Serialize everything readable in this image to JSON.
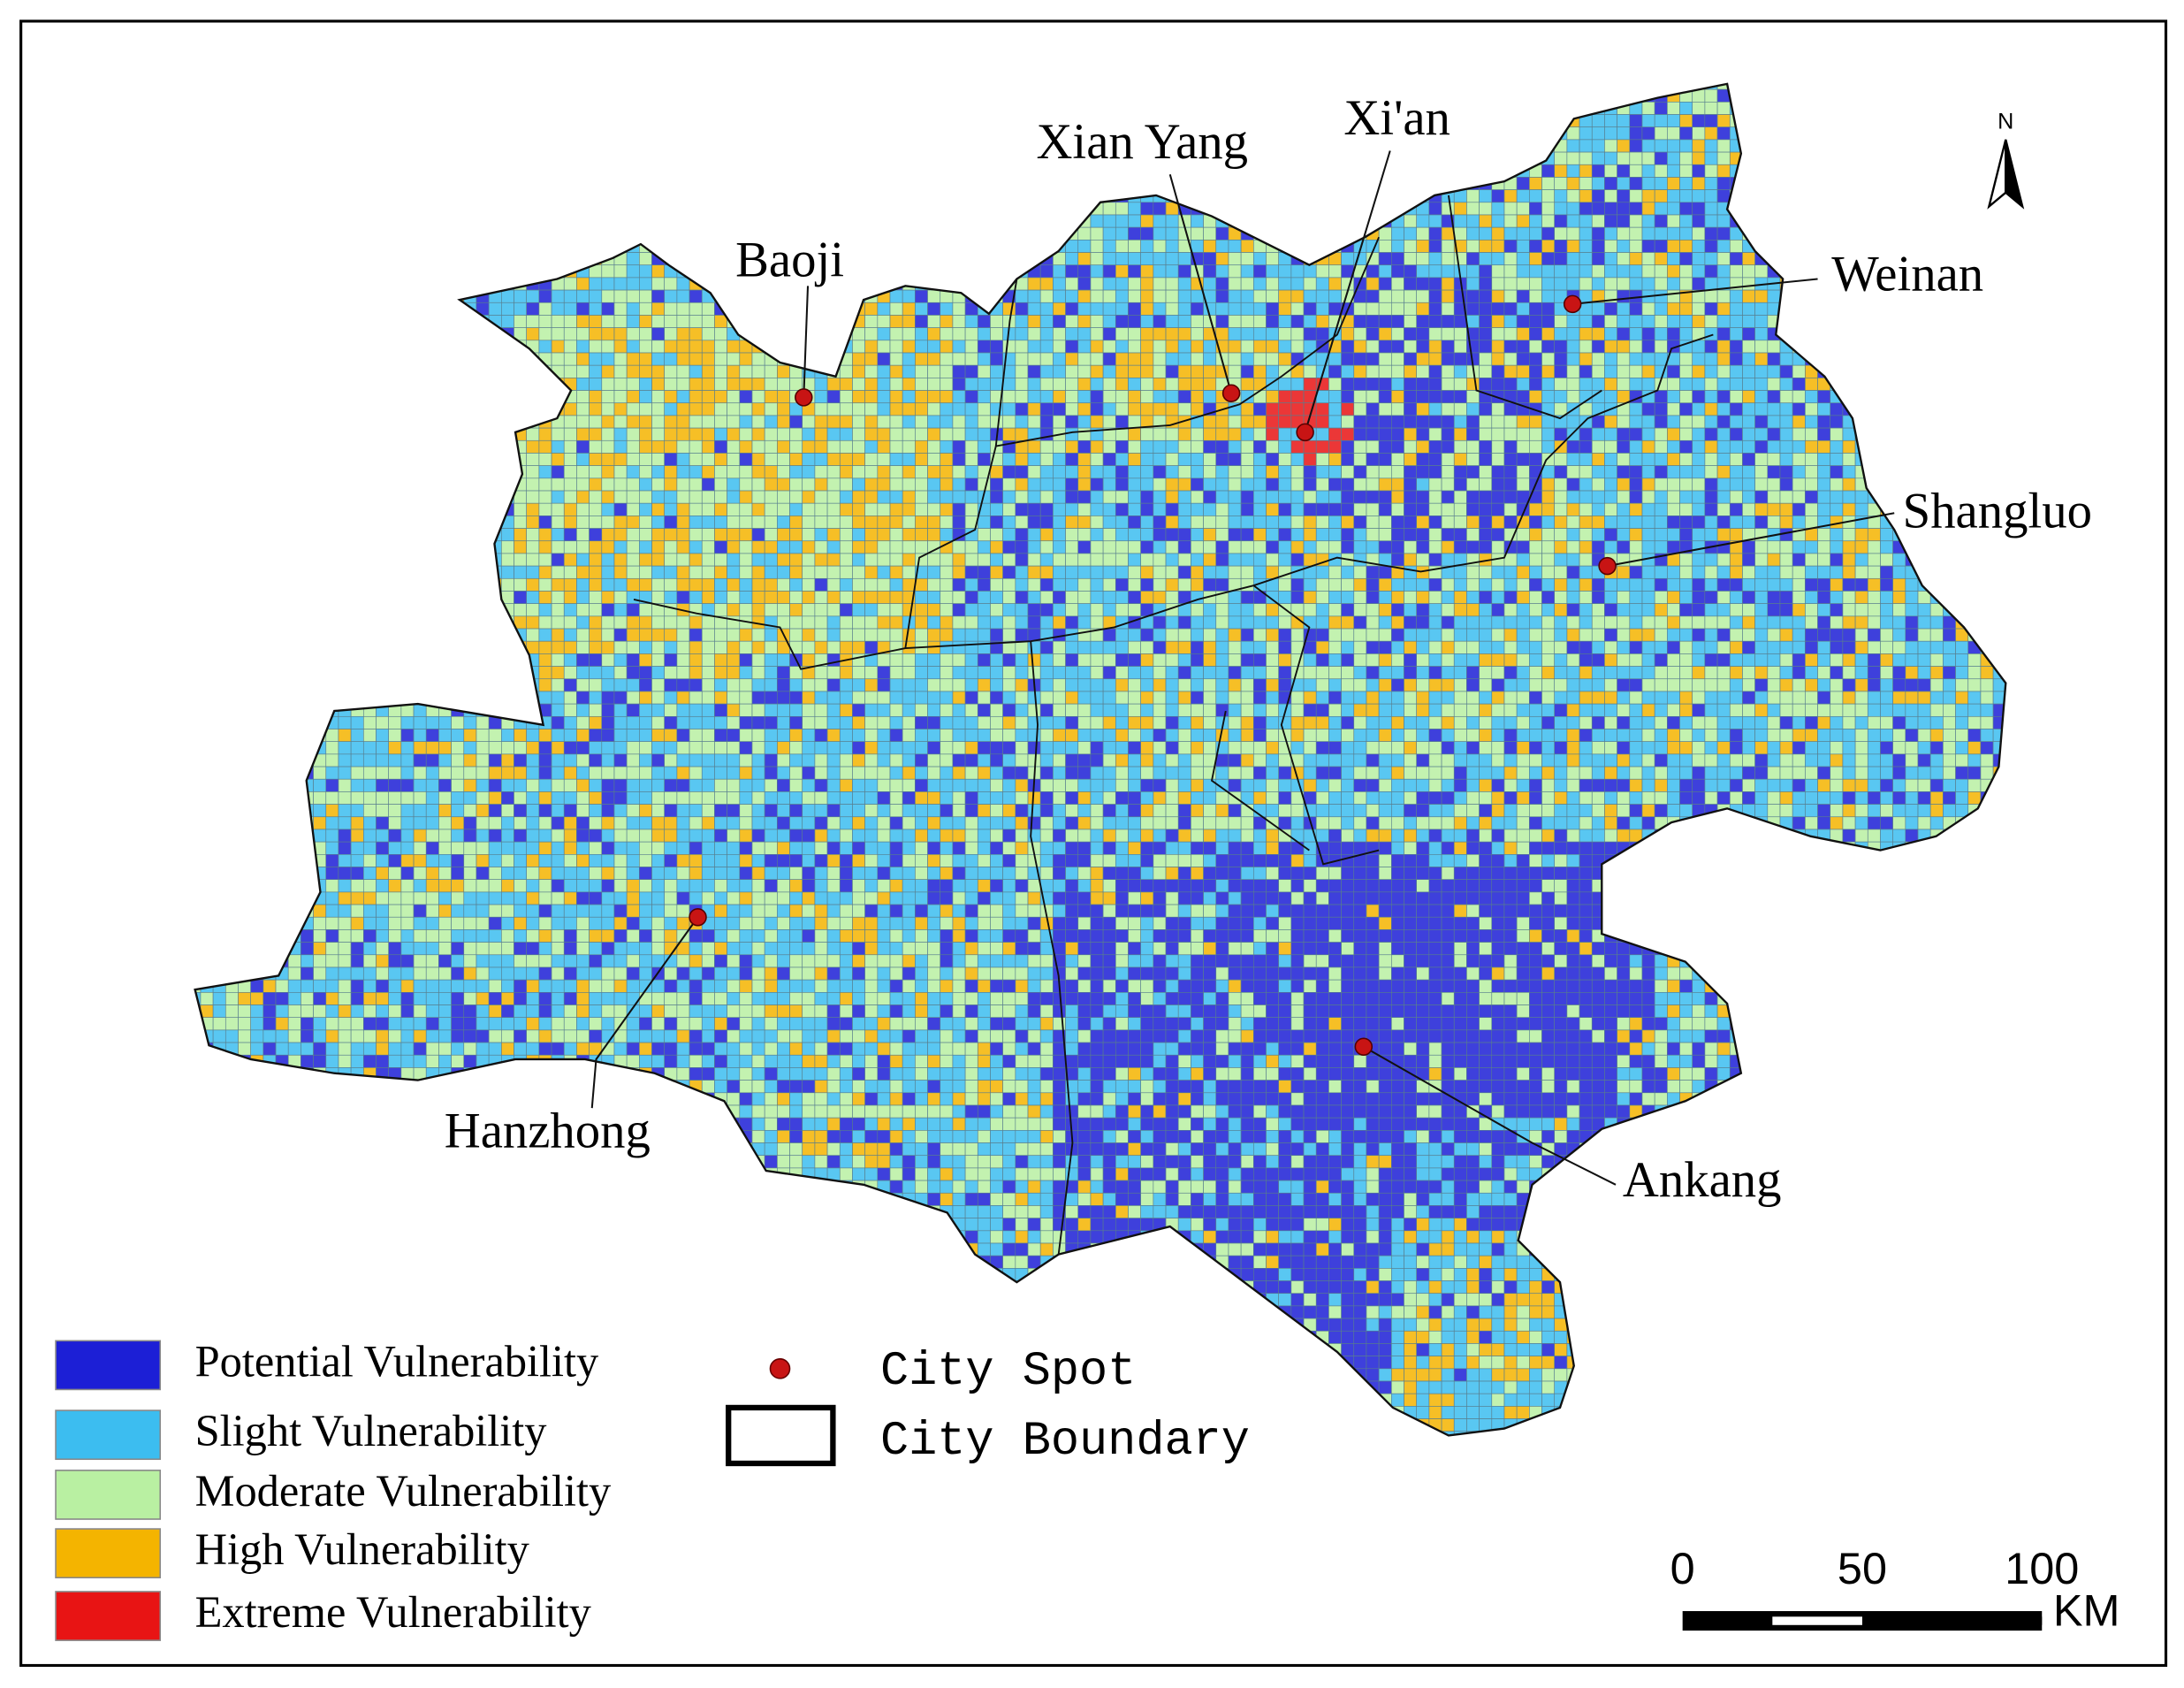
{
  "map": {
    "cities": [
      {
        "name": "Baoji"
      },
      {
        "name": "Xian Yang"
      },
      {
        "name": "Xi'an"
      },
      {
        "name": "Weinan"
      },
      {
        "name": "Shangluo"
      },
      {
        "name": "Hanzhong"
      },
      {
        "name": "Ankang"
      }
    ],
    "legend": [
      {
        "label": "Potential Vulnerability",
        "color": "#1c1fd6"
      },
      {
        "label": "Slight Vulnerability",
        "color": "#3cbdf0"
      },
      {
        "label": "Moderate Vulnerability",
        "color": "#b9f0a2"
      },
      {
        "label": "High Vulnerability",
        "color": "#f4b400"
      },
      {
        "label": "Extreme Vulnerability",
        "color": "#e81414"
      }
    ],
    "city_spot_label": "City Spot",
    "city_boundary_label": "City Boundary",
    "north_label": "N",
    "scale_bar": {
      "ticks": [
        0,
        50,
        100
      ],
      "unit": "KM"
    }
  }
}
